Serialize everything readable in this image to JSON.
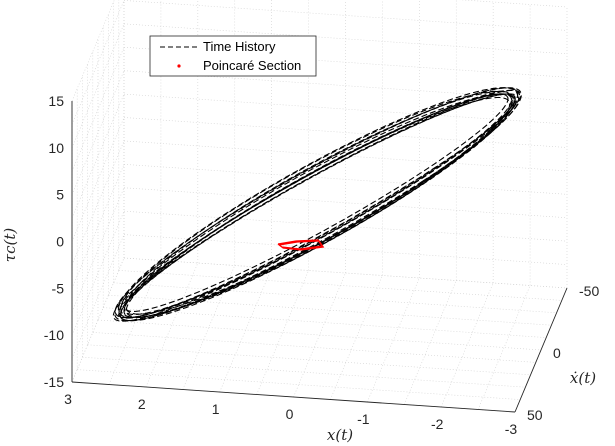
{
  "chart_data": {
    "type": "line",
    "title": "",
    "xlabel": "x(t)",
    "ylabel": "ẋ(t)",
    "zlabel": "τc(t)",
    "xlim": [
      -3,
      3
    ],
    "ylim": [
      -50,
      50
    ],
    "zlim": [
      -15,
      15
    ],
    "x_ticks": [
      "3",
      "2",
      "1",
      "0",
      "-1",
      "-2",
      "-3"
    ],
    "y_ticks": [
      "-50",
      "0",
      "50"
    ],
    "z_ticks": [
      "15",
      "10",
      "5",
      "0",
      "-5",
      "-10",
      "-15"
    ],
    "grid": true,
    "legend_position": "top-left",
    "series": [
      {
        "name": "Time History",
        "style": "dashed",
        "color": "#000000",
        "description_points": [
          {
            "x": 2.3,
            "z": -8.5
          },
          {
            "x": -2.2,
            "z": 14.3
          }
        ]
      },
      {
        "name": "Poincaré Section",
        "style": "markers",
        "color": "#ff0000",
        "x": [
          0.0,
          -0.2,
          -0.4,
          -0.3,
          -0.1
        ],
        "z": [
          -0.5,
          -0.3,
          -0.6,
          -0.8,
          -0.7
        ]
      }
    ]
  }
}
